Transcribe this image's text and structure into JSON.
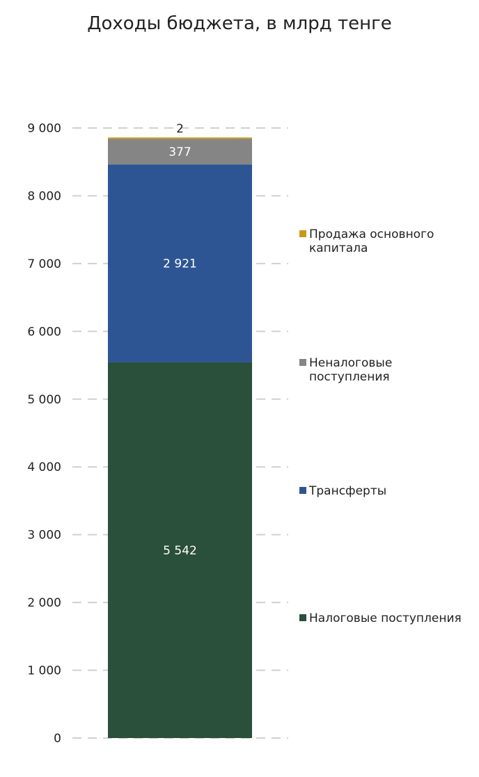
{
  "chart_data": {
    "type": "bar",
    "stacked": true,
    "title": "Доходы бюджета, в млрд тенге",
    "xlabel": "",
    "ylabel": "",
    "ylim": [
      0,
      9000
    ],
    "y_ticks": [
      0,
      1000,
      2000,
      3000,
      4000,
      5000,
      6000,
      7000,
      8000,
      9000
    ],
    "y_tick_labels": [
      "0",
      "1 000",
      "2 000",
      "3 000",
      "4 000",
      "5 000",
      "6 000",
      "7 000",
      "8 000",
      "9 000"
    ],
    "grid": true,
    "legend_position": "right",
    "categories": [
      ""
    ],
    "series": [
      {
        "name": "Налоговые поступления",
        "values": [
          5542
        ],
        "value_labels": [
          "5 542"
        ],
        "color": "#2a4f3a",
        "label_color": "#ffffff"
      },
      {
        "name": "Трансферты",
        "values": [
          2921
        ],
        "value_labels": [
          "2 921"
        ],
        "color": "#2e5593",
        "label_color": "#ffffff"
      },
      {
        "name": "Неналоговые поступления",
        "values": [
          377
        ],
        "value_labels": [
          "377"
        ],
        "color": "#858585",
        "label_color": "#ffffff"
      },
      {
        "name": "Продажа основного капитала",
        "values": [
          2
        ],
        "value_labels": [
          "2"
        ],
        "color": "#c89a18",
        "label_color": "#222222"
      }
    ]
  }
}
